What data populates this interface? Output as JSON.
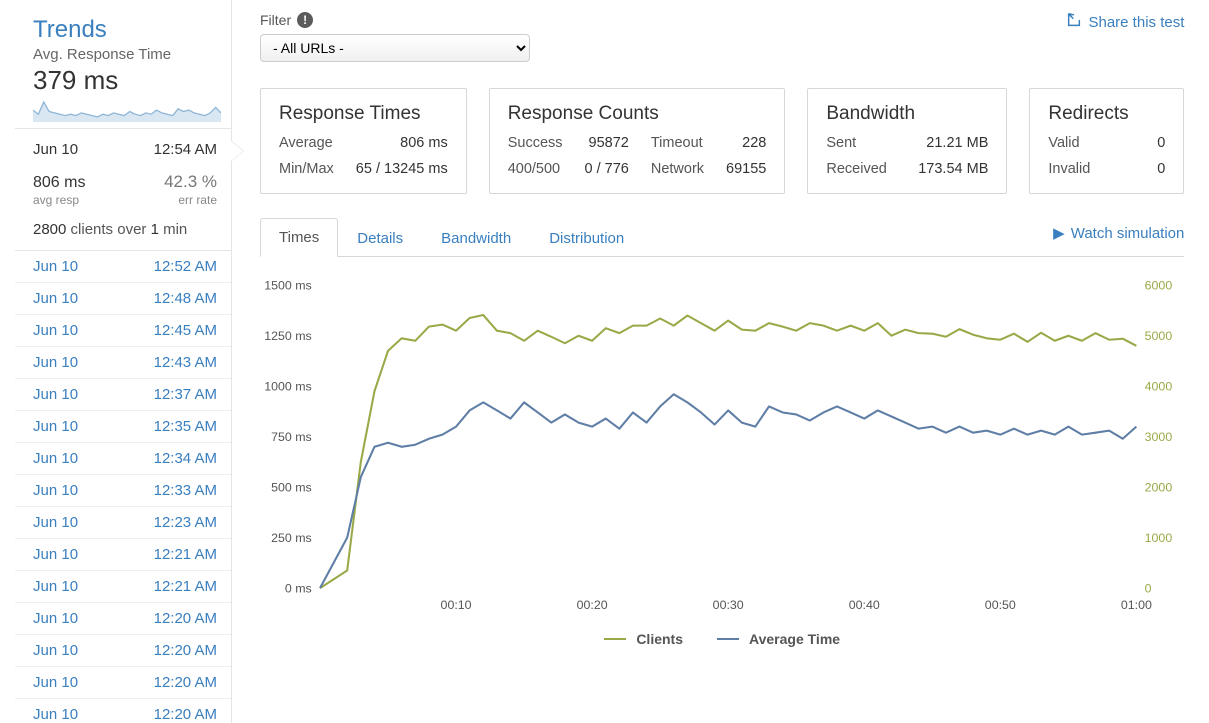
{
  "colors": {
    "link": "#3a7fbf",
    "text": "#333333",
    "muted": "#888888",
    "border": "#d7d7d7",
    "series_clients": "#9aa948",
    "series_avg": "#5f7ea6",
    "spark": "#8fb6d6",
    "sparkFill": "#d9e7f2",
    "right_axis": "#9aa948",
    "grid": "#eeeeee"
  },
  "trends": {
    "title": "Trends",
    "subtitle": "Avg. Response Time",
    "big_value": "379 ms",
    "spark": {
      "height": 22,
      "values": [
        8,
        5,
        14,
        7,
        6,
        5,
        4,
        5,
        4,
        6,
        5,
        4,
        3,
        5,
        4,
        6,
        5,
        4,
        7,
        5,
        4,
        6,
        5,
        8,
        6,
        5,
        4,
        9,
        7,
        8,
        6,
        5,
        4,
        6,
        10,
        6
      ]
    }
  },
  "selected": {
    "date": "Jun 10",
    "time": "12:54 AM",
    "resp": "806 ms",
    "resp_label": "avg resp",
    "err": "42.3 %",
    "err_label": "err rate",
    "clients_count": "2800",
    "clients_mid": " clients over ",
    "clients_min": "1",
    "clients_tail": " min"
  },
  "runs": [
    {
      "date": "Jun 10",
      "time": "12:52 AM"
    },
    {
      "date": "Jun 10",
      "time": "12:48 AM"
    },
    {
      "date": "Jun 10",
      "time": "12:45 AM"
    },
    {
      "date": "Jun 10",
      "time": "12:43 AM"
    },
    {
      "date": "Jun 10",
      "time": "12:37 AM"
    },
    {
      "date": "Jun 10",
      "time": "12:35 AM"
    },
    {
      "date": "Jun 10",
      "time": "12:34 AM"
    },
    {
      "date": "Jun 10",
      "time": "12:33 AM"
    },
    {
      "date": "Jun 10",
      "time": "12:23 AM"
    },
    {
      "date": "Jun 10",
      "time": "12:21 AM"
    },
    {
      "date": "Jun 10",
      "time": "12:21 AM"
    },
    {
      "date": "Jun 10",
      "time": "12:20 AM"
    },
    {
      "date": "Jun 10",
      "time": "12:20 AM"
    },
    {
      "date": "Jun 10",
      "time": "12:20 AM"
    },
    {
      "date": "Jun 10",
      "time": "12:20 AM"
    }
  ],
  "filter": {
    "label": "Filter",
    "selected": "- All URLs -"
  },
  "share": {
    "label": "Share this test"
  },
  "cards": {
    "response_times": {
      "title": "Response Times",
      "rows": [
        {
          "label": "Average",
          "value": "806 ms"
        },
        {
          "label": "Min/Max",
          "value": "65 / 13245 ms"
        }
      ]
    },
    "response_counts": {
      "title": "Response Counts",
      "rows": [
        {
          "l1": "Success",
          "v1": "95872",
          "l2": "Timeout",
          "v2": "228"
        },
        {
          "l1": "400/500",
          "v1": "0 / 776",
          "l2": "Network",
          "v2": "69155"
        }
      ]
    },
    "bandwidth": {
      "title": "Bandwidth",
      "rows": [
        {
          "label": "Sent",
          "value": "21.21 MB"
        },
        {
          "label": "Received",
          "value": "173.54 MB"
        }
      ]
    },
    "redirects": {
      "title": "Redirects",
      "rows": [
        {
          "label": "Valid",
          "value": "0"
        },
        {
          "label": "Invalid",
          "value": "0"
        }
      ]
    }
  },
  "tabs": {
    "items": [
      "Times",
      "Details",
      "Bandwidth",
      "Distribution"
    ],
    "active": 0
  },
  "watch": {
    "label": "Watch simulation"
  },
  "chart": {
    "type": "line",
    "width_base": 790,
    "height_base": 330,
    "background": "#ffffff",
    "left_axis": {
      "label_suffix": " ms",
      "min": 0,
      "max": 1500,
      "step": 250,
      "ticks": [
        "1500 ms",
        "1250 ms",
        "1000 ms",
        "750 ms",
        "500 ms",
        "250 ms",
        "0 ms"
      ],
      "color": "#555555",
      "fontsize": 12
    },
    "right_axis": {
      "min": 0,
      "max": 6000,
      "step": 1000,
      "ticks": [
        "6000",
        "5000",
        "4000",
        "3000",
        "2000",
        "1000",
        "0"
      ],
      "color": "#9aa948",
      "fontsize": 12
    },
    "x_axis": {
      "min": 0,
      "max": 60,
      "ticks": [
        10,
        20,
        30,
        40,
        50,
        60
      ],
      "labels": [
        "00:10",
        "00:20",
        "00:30",
        "00:40",
        "00:50",
        "01:00"
      ],
      "color": "#555555",
      "fontsize": 12
    },
    "legend": [
      {
        "label": "Clients",
        "color": "#9aa948"
      },
      {
        "label": "Average Time",
        "color": "#5f7ea6"
      }
    ],
    "line_width": 2,
    "series": {
      "clients": {
        "color": "#9aa948",
        "axis": "right",
        "data": [
          [
            0,
            0
          ],
          [
            2,
            350
          ],
          [
            3,
            2500
          ],
          [
            4,
            3900
          ],
          [
            5,
            4700
          ],
          [
            6,
            4950
          ],
          [
            7,
            4900
          ],
          [
            8,
            5180
          ],
          [
            9,
            5220
          ],
          [
            10,
            5100
          ],
          [
            11,
            5350
          ],
          [
            12,
            5410
          ],
          [
            13,
            5100
          ],
          [
            14,
            5050
          ],
          [
            15,
            4900
          ],
          [
            16,
            5100
          ],
          [
            17,
            4980
          ],
          [
            18,
            4850
          ],
          [
            19,
            5000
          ],
          [
            20,
            4900
          ],
          [
            21,
            5150
          ],
          [
            22,
            5050
          ],
          [
            23,
            5200
          ],
          [
            24,
            5200
          ],
          [
            25,
            5340
          ],
          [
            26,
            5200
          ],
          [
            27,
            5400
          ],
          [
            28,
            5250
          ],
          [
            29,
            5100
          ],
          [
            30,
            5300
          ],
          [
            31,
            5120
          ],
          [
            32,
            5100
          ],
          [
            33,
            5250
          ],
          [
            34,
            5180
          ],
          [
            35,
            5100
          ],
          [
            36,
            5250
          ],
          [
            37,
            5200
          ],
          [
            38,
            5100
          ],
          [
            39,
            5200
          ],
          [
            40,
            5100
          ],
          [
            41,
            5250
          ],
          [
            42,
            5000
          ],
          [
            43,
            5120
          ],
          [
            44,
            5050
          ],
          [
            45,
            5040
          ],
          [
            46,
            4980
          ],
          [
            47,
            5130
          ],
          [
            48,
            5020
          ],
          [
            49,
            4950
          ],
          [
            50,
            4920
          ],
          [
            51,
            5040
          ],
          [
            52,
            4880
          ],
          [
            53,
            5060
          ],
          [
            54,
            4900
          ],
          [
            55,
            5000
          ],
          [
            56,
            4900
          ],
          [
            57,
            5050
          ],
          [
            58,
            4920
          ],
          [
            59,
            4940
          ],
          [
            60,
            4800
          ]
        ]
      },
      "avg_time": {
        "color": "#5f7ea6",
        "axis": "left",
        "data": [
          [
            0,
            0
          ],
          [
            2,
            250
          ],
          [
            3,
            550
          ],
          [
            4,
            700
          ],
          [
            5,
            720
          ],
          [
            6,
            700
          ],
          [
            7,
            710
          ],
          [
            8,
            740
          ],
          [
            9,
            760
          ],
          [
            10,
            800
          ],
          [
            11,
            880
          ],
          [
            12,
            920
          ],
          [
            13,
            880
          ],
          [
            14,
            840
          ],
          [
            15,
            920
          ],
          [
            16,
            870
          ],
          [
            17,
            820
          ],
          [
            18,
            860
          ],
          [
            19,
            820
          ],
          [
            20,
            800
          ],
          [
            21,
            840
          ],
          [
            22,
            790
          ],
          [
            23,
            870
          ],
          [
            24,
            820
          ],
          [
            25,
            900
          ],
          [
            26,
            960
          ],
          [
            27,
            920
          ],
          [
            28,
            870
          ],
          [
            29,
            810
          ],
          [
            30,
            880
          ],
          [
            31,
            820
          ],
          [
            32,
            800
          ],
          [
            33,
            900
          ],
          [
            34,
            870
          ],
          [
            35,
            860
          ],
          [
            36,
            830
          ],
          [
            37,
            870
          ],
          [
            38,
            900
          ],
          [
            39,
            870
          ],
          [
            40,
            840
          ],
          [
            41,
            880
          ],
          [
            42,
            850
          ],
          [
            43,
            820
          ],
          [
            44,
            790
          ],
          [
            45,
            800
          ],
          [
            46,
            770
          ],
          [
            47,
            800
          ],
          [
            48,
            770
          ],
          [
            49,
            780
          ],
          [
            50,
            760
          ],
          [
            51,
            790
          ],
          [
            52,
            760
          ],
          [
            53,
            780
          ],
          [
            54,
            760
          ],
          [
            55,
            800
          ],
          [
            56,
            760
          ],
          [
            57,
            770
          ],
          [
            58,
            780
          ],
          [
            59,
            740
          ],
          [
            60,
            800
          ]
        ]
      }
    }
  }
}
